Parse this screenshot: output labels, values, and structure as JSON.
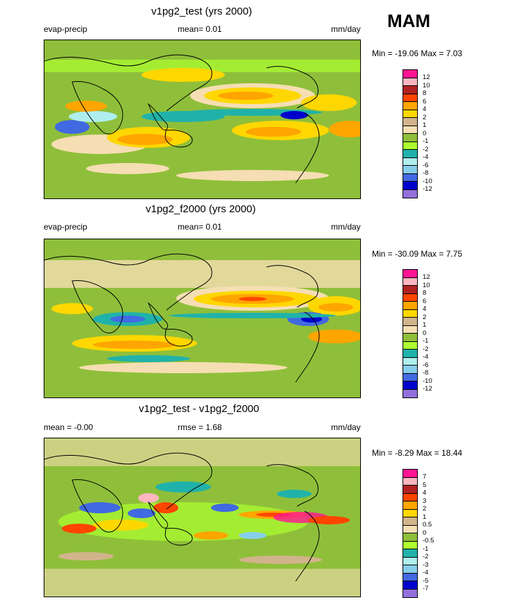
{
  "season": "MAM",
  "colors": {
    "c12": "#ff1493",
    "c10": "#ffb6c1",
    "c8": "#b22222",
    "c6": "#ff4500",
    "c4": "#ffa500",
    "c2": "#ffd700",
    "c1": "#d2b48c",
    "c0": "#f5deb3",
    "m1": "#8fbf3a",
    "m2": "#adff2f",
    "m4": "#20b2aa",
    "m6": "#afeeee",
    "m8": "#87ceeb",
    "m10": "#4169e1",
    "m12": "#0000cd",
    "m14": "#9370db",
    "land_outline": "#000000"
  },
  "panels": [
    {
      "title": "v1pg2_test (yrs 2000)",
      "left_label": "evap-precip",
      "mean_text": "mean=  0.01",
      "units": "mm/day",
      "minmax": "Min = -19.06 Max =   7.03",
      "colorbar_labels": [
        "12",
        "10",
        "8",
        "6",
        "4",
        "2",
        "1",
        "0",
        "-1",
        "-2",
        "-4",
        "-6",
        "-8",
        "-10",
        "-12"
      ],
      "colorbar_colors": [
        "#ff1493",
        "#ffb6c1",
        "#b22222",
        "#ff4500",
        "#ffa500",
        "#ffd700",
        "#d2b48c",
        "#f5deb3",
        "#8fbf3a",
        "#adff2f",
        "#20b2aa",
        "#afeeee",
        "#87ceeb",
        "#4169e1",
        "#0000cd",
        "#9370db"
      ]
    },
    {
      "title": "v1pg2_f2000 (yrs 2000)",
      "left_label": "evap-precip",
      "mean_text": "mean=  0.01",
      "units": "mm/day",
      "minmax": "Min = -30.09 Max =   7.75",
      "colorbar_labels": [
        "12",
        "10",
        "8",
        "6",
        "4",
        "2",
        "1",
        "0",
        "-1",
        "-2",
        "-4",
        "-6",
        "-8",
        "-10",
        "-12"
      ],
      "colorbar_colors": [
        "#ff1493",
        "#ffb6c1",
        "#b22222",
        "#ff4500",
        "#ffa500",
        "#ffd700",
        "#d2b48c",
        "#f5deb3",
        "#8fbf3a",
        "#adff2f",
        "#20b2aa",
        "#afeeee",
        "#87ceeb",
        "#4169e1",
        "#0000cd",
        "#9370db"
      ]
    },
    {
      "title": "v1pg2_test - v1pg2_f2000",
      "left_label": "mean =  -0.00",
      "mean_text": "rmse =   1.68",
      "units": "mm/day",
      "minmax": "Min =  -8.29 Max =  18.44",
      "colorbar_labels": [
        "7",
        "5",
        "4",
        "3",
        "2",
        "1",
        "0.5",
        "0",
        "-0.5",
        "-1",
        "-2",
        "-3",
        "-4",
        "-5",
        "-7"
      ],
      "colorbar_colors": [
        "#ff1493",
        "#ffb6c1",
        "#b22222",
        "#ff4500",
        "#ffa500",
        "#ffd700",
        "#d2b48c",
        "#f5deb3",
        "#8fbf3a",
        "#adff2f",
        "#20b2aa",
        "#afeeee",
        "#87ceeb",
        "#4169e1",
        "#0000cd",
        "#9370db"
      ]
    }
  ]
}
